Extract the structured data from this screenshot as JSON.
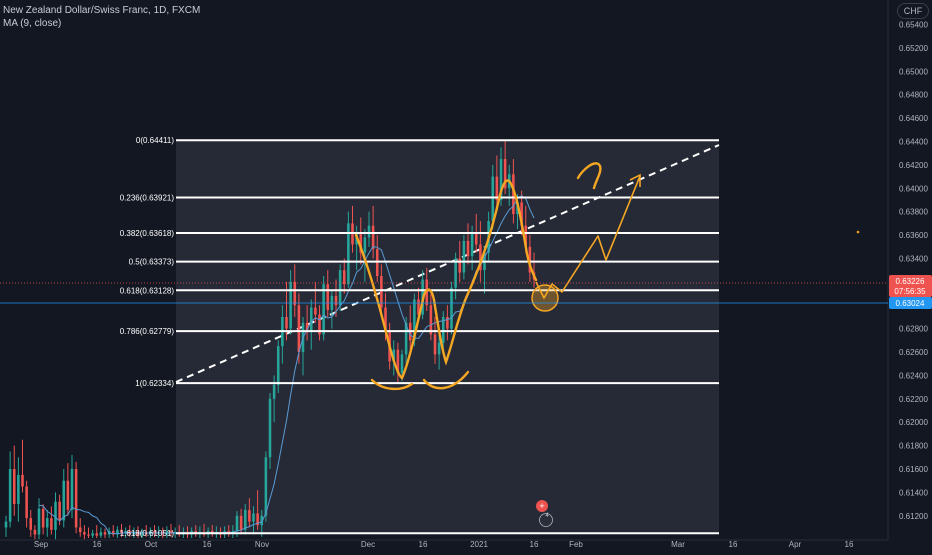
{
  "header": {
    "symbol_title": "New Zealand Dollar/Swiss Franc, 1D, FXCM",
    "indicator": "MA (9, close)",
    "currency_badge": "CHF"
  },
  "colors": {
    "background": "#131722",
    "up": "#26a69a",
    "down": "#ef5350",
    "fib_box": "#2a2e39",
    "fib_line": "#ffffff",
    "drawing": "#f5a623",
    "ma": "#5a9bd5",
    "price_tag_red": "#ef5350",
    "price_tag_blue": "#2196f3"
  },
  "price_axis": {
    "ticks": [
      "0.65400",
      "0.65200",
      "0.65000",
      "0.64800",
      "0.64600",
      "0.64400",
      "0.64200",
      "0.64000",
      "0.63800",
      "0.63600",
      "0.63400",
      "0.63200",
      "0.63000",
      "0.62800",
      "0.62600",
      "0.62400",
      "0.62200",
      "0.62000",
      "0.61800",
      "0.61600",
      "0.61400",
      "0.61200"
    ],
    "current_price": "0.63226",
    "countdown": "07:56:35",
    "crosshair_price": "0.63024"
  },
  "time_axis": {
    "labels": [
      "Sep",
      "16",
      "Oct",
      "16",
      "Nov",
      "Dec",
      "16",
      "2021",
      "16",
      "Feb",
      "Mar",
      "16",
      "Apr",
      "16"
    ]
  },
  "fibonacci": [
    {
      "label": "0(0.64411)",
      "price": 0.64411
    },
    {
      "label": "0.236(0.63921)",
      "price": 0.63921
    },
    {
      "label": "0.382(0.63618)",
      "price": 0.63618
    },
    {
      "label": "0.5(0.63373)",
      "price": 0.63373
    },
    {
      "label": "0.618(0.63128)",
      "price": 0.63128
    },
    {
      "label": "0.786(0.62779)",
      "price": 0.62779
    },
    {
      "label": "1(0.62334)",
      "price": 0.62334
    },
    {
      "label": "1.618(0.61051)",
      "price": 0.61051
    }
  ],
  "events_badge": "4",
  "chart_data": {
    "type": "candlestick",
    "title": "New Zealand Dollar/Swiss Franc, 1D, FXCM",
    "indicator": "MA (9, close)",
    "ylim": [
      0.6101,
      0.6555
    ],
    "x_start": "2020-09-01",
    "x_end": "2021-01-21",
    "last_close": 0.63226,
    "fib_retracement": {
      "start": 0.64411,
      "end": 0.62334
    },
    "candles": [
      {
        "o": 0.611,
        "h": 0.612,
        "l": 0.6102,
        "c": 0.6115
      },
      {
        "o": 0.6115,
        "h": 0.6175,
        "l": 0.611,
        "c": 0.616
      },
      {
        "o": 0.616,
        "h": 0.618,
        "l": 0.612,
        "c": 0.613
      },
      {
        "o": 0.613,
        "h": 0.617,
        "l": 0.6115,
        "c": 0.6155
      },
      {
        "o": 0.6155,
        "h": 0.6185,
        "l": 0.614,
        "c": 0.6145
      },
      {
        "o": 0.6145,
        "h": 0.615,
        "l": 0.611,
        "c": 0.6118
      },
      {
        "o": 0.6118,
        "h": 0.6125,
        "l": 0.6102,
        "c": 0.6108
      },
      {
        "o": 0.6108,
        "h": 0.6112,
        "l": 0.61,
        "c": 0.6104
      },
      {
        "o": 0.6104,
        "h": 0.6135,
        "l": 0.61,
        "c": 0.6126
      },
      {
        "o": 0.6126,
        "h": 0.613,
        "l": 0.6104,
        "c": 0.611
      },
      {
        "o": 0.611,
        "h": 0.6125,
        "l": 0.6102,
        "c": 0.6118
      },
      {
        "o": 0.6118,
        "h": 0.6128,
        "l": 0.6104,
        "c": 0.6108
      },
      {
        "o": 0.6108,
        "h": 0.614,
        "l": 0.61,
        "c": 0.6132
      },
      {
        "o": 0.6132,
        "h": 0.6138,
        "l": 0.6112,
        "c": 0.6116
      },
      {
        "o": 0.6116,
        "h": 0.616,
        "l": 0.611,
        "c": 0.615
      },
      {
        "o": 0.615,
        "h": 0.6165,
        "l": 0.612,
        "c": 0.6125
      },
      {
        "o": 0.6125,
        "h": 0.6172,
        "l": 0.6118,
        "c": 0.616
      },
      {
        "o": 0.616,
        "h": 0.6166,
        "l": 0.6105,
        "c": 0.611
      },
      {
        "o": 0.611,
        "h": 0.6118,
        "l": 0.6102,
        "c": 0.6106
      },
      {
        "o": 0.6106,
        "h": 0.6112,
        "l": 0.61,
        "c": 0.6104
      },
      {
        "o": 0.6104,
        "h": 0.611,
        "l": 0.6101,
        "c": 0.6103
      },
      {
        "o": 0.6103,
        "h": 0.6108,
        "l": 0.6101,
        "c": 0.6105
      },
      {
        "o": 0.6105,
        "h": 0.6112,
        "l": 0.6101,
        "c": 0.6103
      },
      {
        "o": 0.6103,
        "h": 0.611,
        "l": 0.6101,
        "c": 0.6106
      },
      {
        "o": 0.6106,
        "h": 0.6109,
        "l": 0.6101,
        "c": 0.6104
      },
      {
        "o": 0.6104,
        "h": 0.611,
        "l": 0.6101,
        "c": 0.6107
      },
      {
        "o": 0.6107,
        "h": 0.6112,
        "l": 0.6102,
        "c": 0.6104
      },
      {
        "o": 0.6104,
        "h": 0.6111,
        "l": 0.6101,
        "c": 0.6108
      },
      {
        "o": 0.6108,
        "h": 0.6113,
        "l": 0.6102,
        "c": 0.6105
      },
      {
        "o": 0.6105,
        "h": 0.611,
        "l": 0.6101,
        "c": 0.6107
      },
      {
        "o": 0.6107,
        "h": 0.6112,
        "l": 0.6102,
        "c": 0.6104
      },
      {
        "o": 0.6104,
        "h": 0.611,
        "l": 0.6101,
        "c": 0.6106
      },
      {
        "o": 0.6106,
        "h": 0.6111,
        "l": 0.6101,
        "c": 0.6103
      },
      {
        "o": 0.6103,
        "h": 0.6109,
        "l": 0.6101,
        "c": 0.6106
      },
      {
        "o": 0.6106,
        "h": 0.6112,
        "l": 0.6102,
        "c": 0.6104
      },
      {
        "o": 0.6104,
        "h": 0.611,
        "l": 0.6101,
        "c": 0.6107
      },
      {
        "o": 0.6107,
        "h": 0.6112,
        "l": 0.6102,
        "c": 0.6105
      },
      {
        "o": 0.6105,
        "h": 0.6111,
        "l": 0.6101,
        "c": 0.6106
      },
      {
        "o": 0.6106,
        "h": 0.611,
        "l": 0.6101,
        "c": 0.6104
      },
      {
        "o": 0.6104,
        "h": 0.6111,
        "l": 0.6101,
        "c": 0.6107
      },
      {
        "o": 0.6107,
        "h": 0.6113,
        "l": 0.6102,
        "c": 0.6105
      },
      {
        "o": 0.6105,
        "h": 0.611,
        "l": 0.6101,
        "c": 0.6106
      },
      {
        "o": 0.6106,
        "h": 0.6112,
        "l": 0.6102,
        "c": 0.6104
      },
      {
        "o": 0.6104,
        "h": 0.611,
        "l": 0.6101,
        "c": 0.6106
      },
      {
        "o": 0.6106,
        "h": 0.6111,
        "l": 0.6101,
        "c": 0.6104
      },
      {
        "o": 0.6104,
        "h": 0.611,
        "l": 0.6101,
        "c": 0.6107
      },
      {
        "o": 0.6107,
        "h": 0.6112,
        "l": 0.6102,
        "c": 0.6105
      },
      {
        "o": 0.6105,
        "h": 0.6111,
        "l": 0.6101,
        "c": 0.6106
      },
      {
        "o": 0.6106,
        "h": 0.6113,
        "l": 0.6102,
        "c": 0.6104
      },
      {
        "o": 0.6104,
        "h": 0.611,
        "l": 0.6101,
        "c": 0.6107
      },
      {
        "o": 0.6107,
        "h": 0.6112,
        "l": 0.6102,
        "c": 0.6105
      },
      {
        "o": 0.6105,
        "h": 0.6111,
        "l": 0.6101,
        "c": 0.6106
      },
      {
        "o": 0.6106,
        "h": 0.611,
        "l": 0.6101,
        "c": 0.6104
      },
      {
        "o": 0.6104,
        "h": 0.6111,
        "l": 0.6101,
        "c": 0.6107
      },
      {
        "o": 0.6107,
        "h": 0.6112,
        "l": 0.6102,
        "c": 0.6105
      },
      {
        "o": 0.6105,
        "h": 0.6112,
        "l": 0.6101,
        "c": 0.6107
      },
      {
        "o": 0.6107,
        "h": 0.6124,
        "l": 0.6102,
        "c": 0.612
      },
      {
        "o": 0.612,
        "h": 0.6126,
        "l": 0.6104,
        "c": 0.6108
      },
      {
        "o": 0.6108,
        "h": 0.613,
        "l": 0.6104,
        "c": 0.6125
      },
      {
        "o": 0.6125,
        "h": 0.6135,
        "l": 0.611,
        "c": 0.6115
      },
      {
        "o": 0.6115,
        "h": 0.6128,
        "l": 0.6104,
        "c": 0.6122
      },
      {
        "o": 0.6122,
        "h": 0.6142,
        "l": 0.6108,
        "c": 0.6112
      },
      {
        "o": 0.6112,
        "h": 0.6125,
        "l": 0.6102,
        "c": 0.612
      },
      {
        "o": 0.612,
        "h": 0.6175,
        "l": 0.6115,
        "c": 0.617
      },
      {
        "o": 0.617,
        "h": 0.6225,
        "l": 0.616,
        "c": 0.622
      },
      {
        "o": 0.622,
        "h": 0.624,
        "l": 0.62,
        "c": 0.6232
      },
      {
        "o": 0.6232,
        "h": 0.627,
        "l": 0.6225,
        "c": 0.6265
      },
      {
        "o": 0.6265,
        "h": 0.63,
        "l": 0.625,
        "c": 0.629
      },
      {
        "o": 0.629,
        "h": 0.632,
        "l": 0.627,
        "c": 0.628
      },
      {
        "o": 0.628,
        "h": 0.633,
        "l": 0.6275,
        "c": 0.632
      },
      {
        "o": 0.632,
        "h": 0.6335,
        "l": 0.629,
        "c": 0.63
      },
      {
        "o": 0.63,
        "h": 0.631,
        "l": 0.625,
        "c": 0.626
      },
      {
        "o": 0.626,
        "h": 0.629,
        "l": 0.624,
        "c": 0.6285
      },
      {
        "o": 0.6285,
        "h": 0.63,
        "l": 0.627,
        "c": 0.6278
      },
      {
        "o": 0.6278,
        "h": 0.6305,
        "l": 0.6262,
        "c": 0.6298
      },
      {
        "o": 0.6298,
        "h": 0.632,
        "l": 0.6285,
        "c": 0.6292
      },
      {
        "o": 0.6292,
        "h": 0.63,
        "l": 0.627,
        "c": 0.6275
      },
      {
        "o": 0.6275,
        "h": 0.6325,
        "l": 0.627,
        "c": 0.6318
      },
      {
        "o": 0.6318,
        "h": 0.633,
        "l": 0.629,
        "c": 0.6296
      },
      {
        "o": 0.6296,
        "h": 0.6312,
        "l": 0.628,
        "c": 0.6308
      },
      {
        "o": 0.6308,
        "h": 0.6322,
        "l": 0.629,
        "c": 0.63
      },
      {
        "o": 0.63,
        "h": 0.6335,
        "l": 0.6295,
        "c": 0.633
      },
      {
        "o": 0.633,
        "h": 0.634,
        "l": 0.631,
        "c": 0.6318
      },
      {
        "o": 0.6318,
        "h": 0.638,
        "l": 0.6315,
        "c": 0.637
      },
      {
        "o": 0.637,
        "h": 0.6385,
        "l": 0.6345,
        "c": 0.6352
      },
      {
        "o": 0.6352,
        "h": 0.6368,
        "l": 0.633,
        "c": 0.6362
      },
      {
        "o": 0.6362,
        "h": 0.6375,
        "l": 0.6335,
        "c": 0.6345
      },
      {
        "o": 0.6345,
        "h": 0.6365,
        "l": 0.632,
        "c": 0.6358
      },
      {
        "o": 0.6358,
        "h": 0.638,
        "l": 0.635,
        "c": 0.6368
      },
      {
        "o": 0.6368,
        "h": 0.6385,
        "l": 0.634,
        "c": 0.6348
      },
      {
        "o": 0.6348,
        "h": 0.636,
        "l": 0.632,
        "c": 0.6325
      },
      {
        "o": 0.6325,
        "h": 0.6335,
        "l": 0.629,
        "c": 0.6298
      },
      {
        "o": 0.6298,
        "h": 0.631,
        "l": 0.627,
        "c": 0.6278
      },
      {
        "o": 0.6278,
        "h": 0.6285,
        "l": 0.6245,
        "c": 0.6252
      },
      {
        "o": 0.6252,
        "h": 0.627,
        "l": 0.624,
        "c": 0.6262
      },
      {
        "o": 0.6262,
        "h": 0.6268,
        "l": 0.6234,
        "c": 0.6242
      },
      {
        "o": 0.6242,
        "h": 0.6262,
        "l": 0.6235,
        "c": 0.6258
      },
      {
        "o": 0.6258,
        "h": 0.629,
        "l": 0.625,
        "c": 0.6285
      },
      {
        "o": 0.6285,
        "h": 0.63,
        "l": 0.6262,
        "c": 0.627
      },
      {
        "o": 0.627,
        "h": 0.631,
        "l": 0.6265,
        "c": 0.6305
      },
      {
        "o": 0.6305,
        "h": 0.6315,
        "l": 0.6285,
        "c": 0.6292
      },
      {
        "o": 0.6292,
        "h": 0.633,
        "l": 0.6288,
        "c": 0.6322
      },
      {
        "o": 0.6322,
        "h": 0.6332,
        "l": 0.6295,
        "c": 0.63
      },
      {
        "o": 0.63,
        "h": 0.631,
        "l": 0.627,
        "c": 0.6275
      },
      {
        "o": 0.6275,
        "h": 0.629,
        "l": 0.625,
        "c": 0.6258
      },
      {
        "o": 0.6258,
        "h": 0.6275,
        "l": 0.6245,
        "c": 0.6268
      },
      {
        "o": 0.6268,
        "h": 0.6295,
        "l": 0.626,
        "c": 0.629
      },
      {
        "o": 0.629,
        "h": 0.63,
        "l": 0.627,
        "c": 0.628
      },
      {
        "o": 0.628,
        "h": 0.632,
        "l": 0.6275,
        "c": 0.6315
      },
      {
        "o": 0.6315,
        "h": 0.6345,
        "l": 0.6305,
        "c": 0.634
      },
      {
        "o": 0.634,
        "h": 0.6355,
        "l": 0.632,
        "c": 0.6328
      },
      {
        "o": 0.6328,
        "h": 0.636,
        "l": 0.6322,
        "c": 0.6355
      },
      {
        "o": 0.6355,
        "h": 0.637,
        "l": 0.6335,
        "c": 0.6342
      },
      {
        "o": 0.6342,
        "h": 0.6368,
        "l": 0.633,
        "c": 0.6362
      },
      {
        "o": 0.6362,
        "h": 0.6378,
        "l": 0.6345,
        "c": 0.6352
      },
      {
        "o": 0.6352,
        "h": 0.6372,
        "l": 0.632,
        "c": 0.633
      },
      {
        "o": 0.633,
        "h": 0.635,
        "l": 0.631,
        "c": 0.6345
      },
      {
        "o": 0.6345,
        "h": 0.638,
        "l": 0.6338,
        "c": 0.6372
      },
      {
        "o": 0.6372,
        "h": 0.642,
        "l": 0.6365,
        "c": 0.641
      },
      {
        "o": 0.641,
        "h": 0.6428,
        "l": 0.638,
        "c": 0.639
      },
      {
        "o": 0.639,
        "h": 0.6435,
        "l": 0.6385,
        "c": 0.6425
      },
      {
        "o": 0.6425,
        "h": 0.6441,
        "l": 0.6395,
        "c": 0.64
      },
      {
        "o": 0.64,
        "h": 0.642,
        "l": 0.6385,
        "c": 0.6412
      },
      {
        "o": 0.6412,
        "h": 0.6425,
        "l": 0.637,
        "c": 0.6378
      },
      {
        "o": 0.6378,
        "h": 0.6395,
        "l": 0.6365,
        "c": 0.6388
      },
      {
        "o": 0.6388,
        "h": 0.6398,
        "l": 0.636,
        "c": 0.6368
      },
      {
        "o": 0.6368,
        "h": 0.6385,
        "l": 0.6345,
        "c": 0.635
      },
      {
        "o": 0.635,
        "h": 0.636,
        "l": 0.632,
        "c": 0.6328
      },
      {
        "o": 0.6328,
        "h": 0.6345,
        "l": 0.6315,
        "c": 0.6322
      }
    ]
  }
}
